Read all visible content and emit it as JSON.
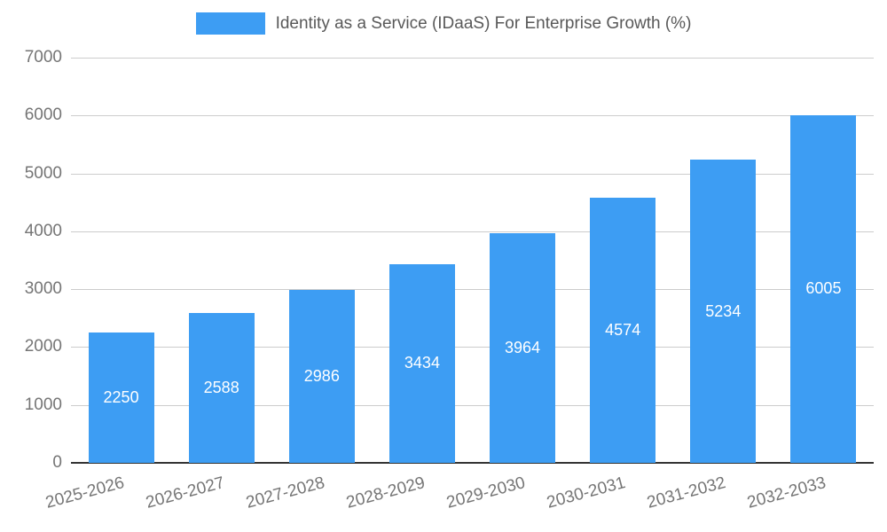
{
  "chart_data": {
    "type": "bar",
    "title": "Identity as a Service (IDaaS) For Enterprise Growth (%)",
    "categories": [
      "2025-2026",
      "2026-2027",
      "2027-2028",
      "2028-2029",
      "2029-2030",
      "2030-2031",
      "2031-2032",
      "2032-2033"
    ],
    "values": [
      2250,
      2588,
      2986,
      3434,
      3964,
      4574,
      5234,
      6005
    ],
    "xlabel": "",
    "ylabel": "",
    "ylim": [
      0,
      7000
    ],
    "yticks": [
      0,
      1000,
      2000,
      3000,
      4000,
      5000,
      6000,
      7000
    ],
    "grid": true,
    "legend_position": "top",
    "bar_labels_inside": true,
    "colors": {
      "bar": "#3d9df3",
      "bar_label": "#ffffff",
      "axis_text": "#757575",
      "title_text": "#595959",
      "gridline": "#cccccc",
      "axis_line": "#333333",
      "background": "#ffffff"
    }
  }
}
